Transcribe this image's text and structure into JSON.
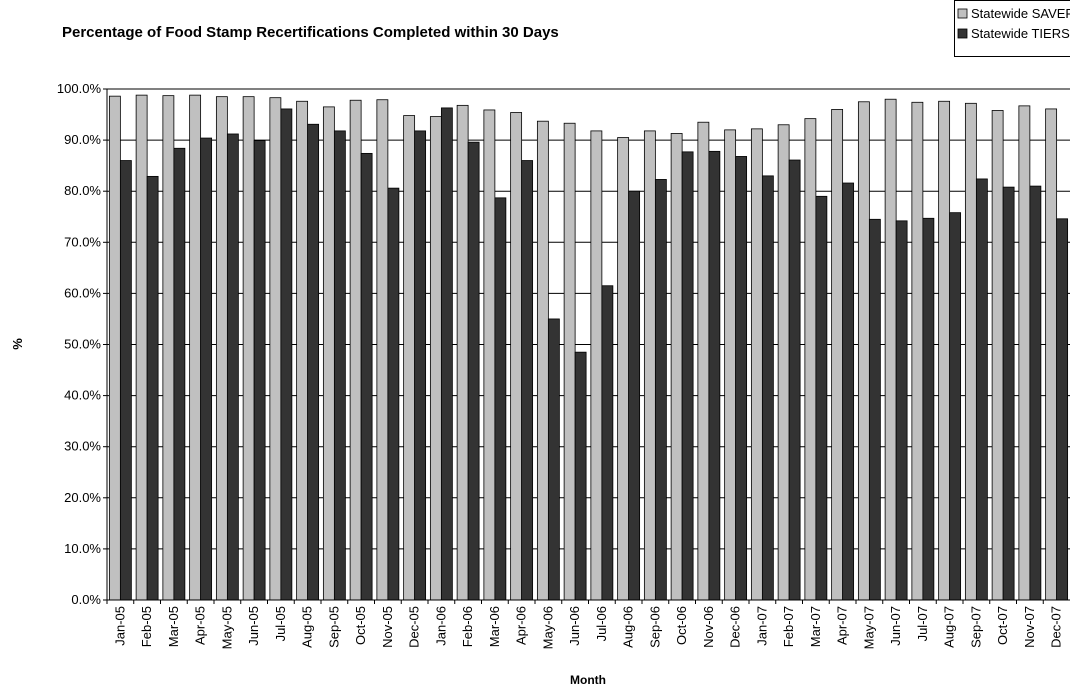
{
  "chart_data": {
    "type": "bar",
    "title": "Percentage of Food Stamp Recertifications Completed within 30 Days",
    "x_label": "Month",
    "y_label": "%",
    "categories": [
      "Jan-05",
      "Feb-05",
      "Mar-05",
      "Apr-05",
      "May-05",
      "Jun-05",
      "Jul-05",
      "Aug-05",
      "Sep-05",
      "Oct-05",
      "Nov-05",
      "Dec-05",
      "Jan-06",
      "Feb-06",
      "Mar-06",
      "Apr-06",
      "May-06",
      "Jun-06",
      "Jul-06",
      "Aug-06",
      "Sep-06",
      "Oct-06",
      "Nov-06",
      "Dec-06",
      "Jan-07",
      "Feb-07",
      "Mar-07",
      "Apr-07",
      "May-07",
      "Jun-07",
      "Jul-07",
      "Aug-07",
      "Sep-07",
      "Oct-07",
      "Nov-07",
      "Dec-07"
    ],
    "series": [
      {
        "name": "Statewide SAVERR",
        "color": "#c0c0c0",
        "values": [
          98.6,
          98.8,
          98.7,
          98.8,
          98.5,
          98.5,
          98.3,
          97.6,
          96.5,
          97.8,
          97.9,
          94.8,
          94.6,
          96.8,
          95.9,
          95.4,
          93.7,
          93.3,
          91.8,
          90.5,
          91.8,
          91.3,
          93.5,
          92.0,
          92.2,
          93.0,
          94.2,
          96.0,
          97.5,
          98.0,
          97.4,
          97.6,
          97.2,
          95.8,
          96.7,
          96.1
        ]
      },
      {
        "name": "Statewide TIERS",
        "color": "#333333",
        "values": [
          86.0,
          82.9,
          88.4,
          90.4,
          91.2,
          89.9,
          96.1,
          93.1,
          91.8,
          87.4,
          80.6,
          91.8,
          96.3,
          89.6,
          78.7,
          86.0,
          55.0,
          48.5,
          61.5,
          80.0,
          82.3,
          87.7,
          87.8,
          86.8,
          83.0,
          86.1,
          79.0,
          81.6,
          74.5,
          74.2,
          74.7,
          75.8,
          82.4,
          80.8,
          81.0,
          74.6
        ]
      }
    ],
    "ylim": [
      0,
      100
    ],
    "yticks": [
      {
        "value": 0,
        "label": "0.0%"
      },
      {
        "value": 10,
        "label": "10.0%"
      },
      {
        "value": 20,
        "label": "20.0%"
      },
      {
        "value": 30,
        "label": "30.0%"
      },
      {
        "value": 40,
        "label": "40.0%"
      },
      {
        "value": 50,
        "label": "50.0%"
      },
      {
        "value": 60,
        "label": "60.0%"
      },
      {
        "value": 70,
        "label": "70.0%"
      },
      {
        "value": 80,
        "label": "80.0%"
      },
      {
        "value": 90,
        "label": "90.0%"
      },
      {
        "value": 100,
        "label": "100.0%"
      }
    ],
    "grid": true,
    "legend": "top-right"
  }
}
